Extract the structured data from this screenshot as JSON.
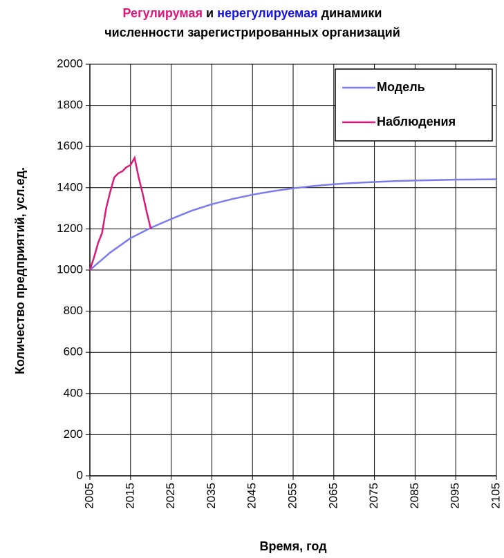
{
  "chart_data": {
    "type": "line",
    "title": [
      {
        "text": "Регулирумая",
        "color": "#e0147c"
      },
      {
        "text": "и",
        "color": "#000000"
      },
      {
        "text": "нерегулируемая",
        "color": "#1414e6"
      },
      {
        "text": "динамики",
        "color": "#000000"
      },
      {
        "text": "численности зарегистрированных организаций",
        "color": "#000000"
      }
    ],
    "xlabel": "Время, год",
    "ylabel": "Количество предприятий, усл.ед.",
    "xlim": [
      2005,
      2105
    ],
    "xticks": [
      2005,
      2015,
      2025,
      2035,
      2045,
      2055,
      2065,
      2075,
      2085,
      2095,
      2105
    ],
    "ylim": [
      0,
      2000
    ],
    "yticks": [
      0,
      200,
      400,
      600,
      800,
      1000,
      1200,
      1400,
      1600,
      1800,
      2000
    ],
    "grid": true,
    "legend": "upper right",
    "series": [
      {
        "name": "Модель",
        "color": "#7b7bf0",
        "x": [
          2005,
          2010,
          2015,
          2020,
          2025,
          2030,
          2035,
          2040,
          2045,
          2050,
          2055,
          2060,
          2065,
          2070,
          2075,
          2080,
          2085,
          2090,
          2095,
          2100,
          2105
        ],
        "values": [
          1000,
          1085,
          1155,
          1205,
          1248,
          1288,
          1320,
          1345,
          1366,
          1383,
          1397,
          1408,
          1417,
          1423,
          1428,
          1432,
          1435,
          1437,
          1439,
          1440,
          1441
        ]
      },
      {
        "name": "Наблюдения",
        "color": "#d81b7a",
        "x": [
          2005,
          2006,
          2007,
          2008,
          2009,
          2010,
          2011,
          2012,
          2013,
          2014,
          2015,
          2016,
          2017,
          2018,
          2019,
          2020
        ],
        "values": [
          1000,
          1060,
          1130,
          1180,
          1300,
          1380,
          1450,
          1470,
          1480,
          1500,
          1510,
          1545,
          1450,
          1370,
          1280,
          1200
        ]
      }
    ]
  }
}
